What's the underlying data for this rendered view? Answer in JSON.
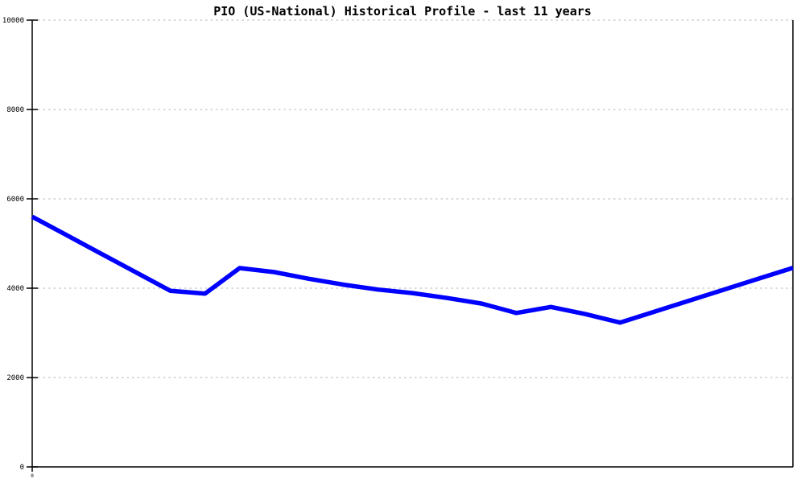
{
  "title": "PIO (US-National) Historical Profile - last 11 years",
  "colors": {
    "background": "#ffffff",
    "axis": "#000000",
    "grid": "#b3b3b3",
    "series": "#0000ff",
    "label": "#000000"
  },
  "chart_data": {
    "type": "line",
    "title": "PIO (US-National) Historical Profile - last 11 years",
    "xlabel": "",
    "ylabel": "",
    "xlim": [
      0,
      11
    ],
    "ylim": [
      0,
      10000
    ],
    "y_ticks": [
      0,
      2000,
      4000,
      6000,
      8000,
      10000
    ],
    "y_tick_labels": [
      "0",
      "2000",
      "4000",
      "6000",
      "8000",
      "10000"
    ],
    "x_tick_labels": [
      "0"
    ],
    "grid": "horizontal dotted gray",
    "legend": "none",
    "line_color": "#0000ff",
    "line_width": 5.5,
    "series": [
      {
        "name": "PIO (US-National)",
        "x_years": [
          0,
          0.5,
          1,
          1.5,
          2,
          2.5,
          3,
          3.5,
          4,
          4.5,
          5,
          5.5,
          6,
          6.5,
          7,
          7.5,
          8,
          8.5,
          9,
          9.5,
          10,
          10.5,
          11
        ],
        "values": [
          5600,
          5185,
          4770,
          4355,
          3940,
          3880,
          4450,
          4360,
          4210,
          4080,
          3970,
          3890,
          3780,
          3655,
          3445,
          3580,
          3420,
          3230,
          3475,
          3720,
          3965,
          4210,
          4455
        ]
      }
    ]
  }
}
